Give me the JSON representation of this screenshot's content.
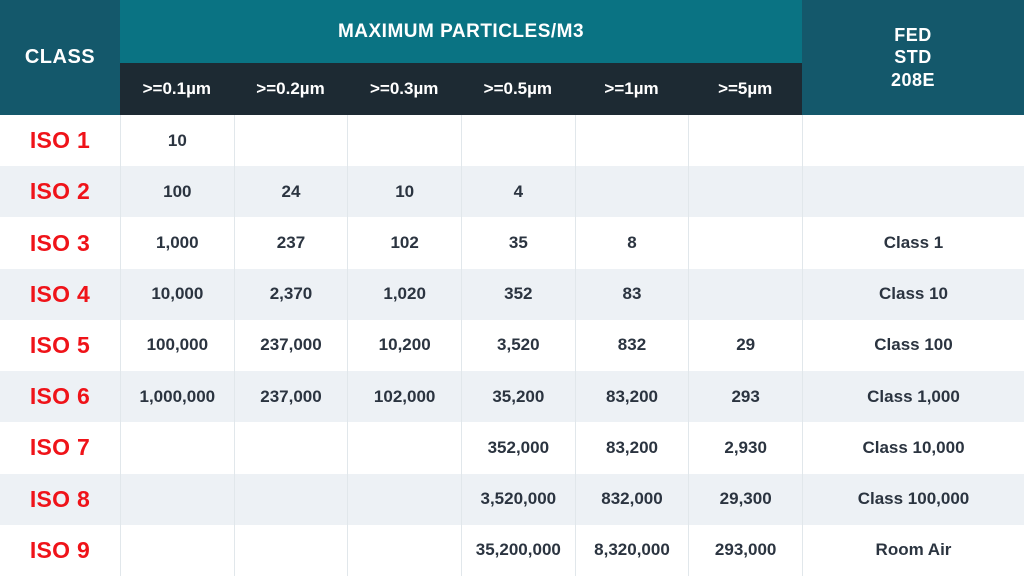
{
  "colors": {
    "title_band_teal": "#0a7383",
    "corner_dark_teal": "#14586b",
    "subheader_navy": "#1d2a33",
    "iso_label_red": "#ef1319",
    "row_alt_tint": "#edf1f5",
    "value_text": "#2b3440",
    "column_border": "#e1e7eb"
  },
  "chart_data": {
    "type": "table",
    "title": "MAXIMUM PARTICLES/M3",
    "class_header": "CLASS",
    "fed_std_header": "FED\nSTD\n208E",
    "size_headers": [
      ">=0.1µm",
      ">=0.2µm",
      ">=0.3µm",
      ">=0.5µm",
      ">=1µm",
      ">=5µm"
    ],
    "rows": [
      {
        "class": "ISO 1",
        "values": [
          "10",
          "",
          "",
          "",
          "",
          ""
        ],
        "fed_std": ""
      },
      {
        "class": "ISO 2",
        "values": [
          "100",
          "24",
          "10",
          "4",
          "",
          ""
        ],
        "fed_std": ""
      },
      {
        "class": "ISO 3",
        "values": [
          "1,000",
          "237",
          "102",
          "35",
          "8",
          ""
        ],
        "fed_std": "Class 1"
      },
      {
        "class": "ISO 4",
        "values": [
          "10,000",
          "2,370",
          "1,020",
          "352",
          "83",
          ""
        ],
        "fed_std": "Class 10"
      },
      {
        "class": "ISO 5",
        "values": [
          "100,000",
          "237,000",
          "10,200",
          "3,520",
          "832",
          "29"
        ],
        "fed_std": "Class 100"
      },
      {
        "class": "ISO 6",
        "values": [
          "1,000,000",
          "237,000",
          "102,000",
          "35,200",
          "83,200",
          "293"
        ],
        "fed_std": "Class 1,000"
      },
      {
        "class": "ISO 7",
        "values": [
          "",
          "",
          "",
          "352,000",
          "83,200",
          "2,930"
        ],
        "fed_std": "Class 10,000"
      },
      {
        "class": "ISO 8",
        "values": [
          "",
          "",
          "",
          "3,520,000",
          "832,000",
          "29,300"
        ],
        "fed_std": "Class 100,000"
      },
      {
        "class": "ISO 9",
        "values": [
          "",
          "",
          "",
          "35,200,000",
          "8,320,000",
          "293,000"
        ],
        "fed_std": "Room Air"
      }
    ]
  }
}
